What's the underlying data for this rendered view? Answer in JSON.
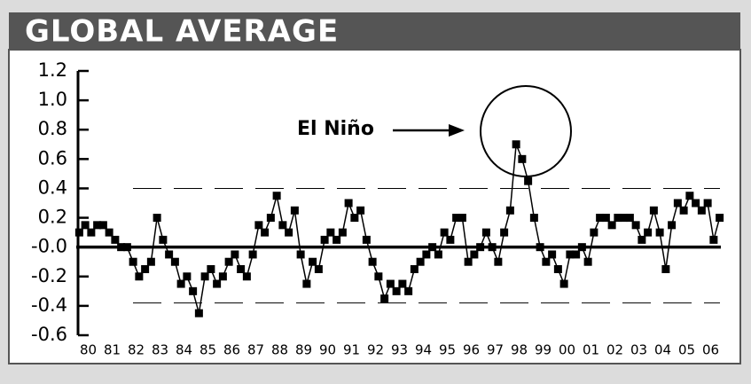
{
  "chart_data": {
    "type": "line",
    "title": "GLOBAL AVERAGE",
    "annotation": "El Niño",
    "x": [
      1980.125,
      1980.375,
      1980.625,
      1980.875,
      1981.125,
      1981.375,
      1981.625,
      1981.875,
      1982.125,
      1982.375,
      1982.625,
      1982.875,
      1983.125,
      1983.375,
      1983.625,
      1983.875,
      1984.125,
      1984.375,
      1984.625,
      1984.875,
      1985.125,
      1985.375,
      1985.625,
      1985.875,
      1986.125,
      1986.375,
      1986.625,
      1986.875,
      1987.125,
      1987.375,
      1987.625,
      1987.875,
      1988.125,
      1988.375,
      1988.625,
      1988.875,
      1989.125,
      1989.375,
      1989.625,
      1989.875,
      1990.125,
      1990.375,
      1990.625,
      1990.875,
      1991.125,
      1991.375,
      1991.625,
      1991.875,
      1992.125,
      1992.375,
      1992.625,
      1992.875,
      1993.125,
      1993.375,
      1993.625,
      1993.875,
      1994.125,
      1994.375,
      1994.625,
      1994.875,
      1995.125,
      1995.375,
      1995.625,
      1995.875,
      1996.125,
      1996.375,
      1996.625,
      1996.875,
      1997.125,
      1997.375,
      1997.625,
      1997.875,
      1998.125,
      1998.375,
      1998.625,
      1998.875,
      1999.125,
      1999.375,
      1999.625,
      1999.875,
      2000.125,
      2000.375,
      2000.625,
      2000.875,
      2001.125,
      2001.375,
      2001.625,
      2001.875,
      2002.125,
      2002.375,
      2002.625,
      2002.875,
      2003.125,
      2003.375,
      2003.625,
      2003.875,
      2004.125,
      2004.375,
      2004.625,
      2004.875,
      2005.125,
      2005.375,
      2005.625,
      2005.875,
      2006.125,
      2006.375,
      2006.625,
      2006.875
    ],
    "series": [
      {
        "color": "#000000",
        "values": [
          0.1,
          0.15,
          0.1,
          0.15,
          0.15,
          0.1,
          0.05,
          0.0,
          0.0,
          -0.1,
          -0.2,
          -0.15,
          -0.1,
          0.2,
          0.05,
          -0.05,
          -0.1,
          -0.25,
          -0.2,
          -0.3,
          -0.45,
          -0.2,
          -0.15,
          -0.25,
          -0.2,
          -0.1,
          -0.05,
          -0.15,
          -0.2,
          -0.05,
          0.15,
          0.1,
          0.2,
          0.35,
          0.15,
          0.1,
          0.25,
          -0.05,
          -0.25,
          -0.1,
          -0.15,
          0.05,
          0.1,
          0.05,
          0.1,
          0.3,
          0.2,
          0.25,
          0.05,
          -0.1,
          -0.2,
          -0.35,
          -0.25,
          -0.3,
          -0.25,
          -0.3,
          -0.15,
          -0.1,
          -0.05,
          0.0,
          -0.05,
          0.1,
          0.05,
          0.2,
          0.2,
          -0.1,
          -0.05,
          0.0,
          0.1,
          0.0,
          -0.1,
          0.1,
          0.25,
          0.7,
          0.6,
          0.45,
          0.2,
          0.0,
          -0.1,
          -0.05,
          -0.15,
          -0.25,
          -0.05,
          -0.05,
          0.0,
          -0.1,
          0.1,
          0.2,
          0.2,
          0.15,
          0.2,
          0.2,
          0.2,
          0.15,
          0.05,
          0.1,
          0.25,
          0.1,
          -0.15,
          0.15,
          0.3,
          0.25,
          0.35,
          0.3,
          0.25,
          0.3,
          0.05,
          0.2
        ]
      }
    ],
    "xlim": [
      1980,
      2007
    ],
    "xticks": [
      {
        "value": 1980.5,
        "label": "80"
      },
      {
        "value": 1981.5,
        "label": "81"
      },
      {
        "value": 1982.5,
        "label": "82"
      },
      {
        "value": 1983.5,
        "label": "83"
      },
      {
        "value": 1984.5,
        "label": "84"
      },
      {
        "value": 1985.5,
        "label": "85"
      },
      {
        "value": 1986.5,
        "label": "86"
      },
      {
        "value": 1987.5,
        "label": "87"
      },
      {
        "value": 1988.5,
        "label": "88"
      },
      {
        "value": 1989.5,
        "label": "89"
      },
      {
        "value": 1990.5,
        "label": "90"
      },
      {
        "value": 1991.5,
        "label": "91"
      },
      {
        "value": 1992.5,
        "label": "92"
      },
      {
        "value": 1993.5,
        "label": "93"
      },
      {
        "value": 1994.5,
        "label": "94"
      },
      {
        "value": 1995.5,
        "label": "95"
      },
      {
        "value": 1996.5,
        "label": "96"
      },
      {
        "value": 1997.5,
        "label": "97"
      },
      {
        "value": 1998.5,
        "label": "98"
      },
      {
        "value": 1999.5,
        "label": "99"
      },
      {
        "value": 2000.5,
        "label": "00"
      },
      {
        "value": 2001.5,
        "label": "01"
      },
      {
        "value": 2002.5,
        "label": "02"
      },
      {
        "value": 2003.5,
        "label": "03"
      },
      {
        "value": 2004.5,
        "label": "04"
      },
      {
        "value": 2005.5,
        "label": "05"
      },
      {
        "value": 2006.5,
        "label": "06"
      }
    ],
    "ylim": [
      -0.6,
      1.2
    ],
    "yticks": [
      -0.6,
      -0.4,
      -0.2,
      {
        "value": 0,
        "label": "-0.0"
      },
      0.2,
      0.4,
      0.6,
      0.8,
      {
        "value": 1,
        "label": "1.0"
      },
      1.2
    ],
    "reference_lines": [
      0.4,
      -0.38
    ],
    "zero_line": 0
  }
}
